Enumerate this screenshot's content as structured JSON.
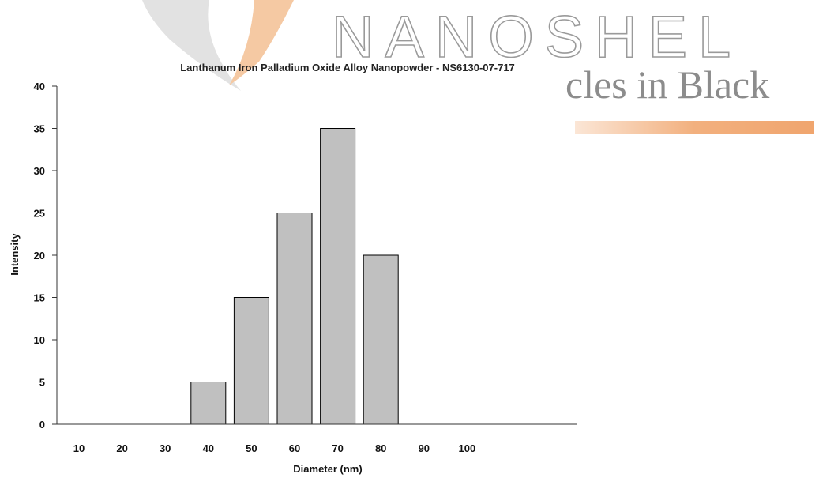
{
  "watermark": {
    "brand": "NANOSHEL",
    "tagline": "cles in Black",
    "colors": {
      "swoosh_gray": "#e2e2e2",
      "swoosh_orange": "#f5c9a3",
      "bar_orange": "#f2b07e",
      "text_gray": "#9a9a9a"
    }
  },
  "chart_data": {
    "type": "bar",
    "title": "Lanthanum Iron Palladium  Oxide Alloy Nanopowder - NS6130-07-717",
    "xlabel": "Diameter (nm)",
    "ylabel": "Intensity",
    "categories": [
      "10",
      "20",
      "30",
      "40",
      "50",
      "60",
      "70",
      "80",
      "90",
      "100"
    ],
    "values": [
      0,
      0,
      0,
      5,
      15,
      25,
      35,
      20,
      0,
      0
    ],
    "ylim": [
      0,
      40
    ],
    "yticks": [
      "0",
      "5",
      "10",
      "15",
      "20",
      "25",
      "30",
      "35",
      "40"
    ],
    "grid": false,
    "legend": "none",
    "bar_color": "#c0c0c0",
    "bar_edge_color": "#000000"
  }
}
